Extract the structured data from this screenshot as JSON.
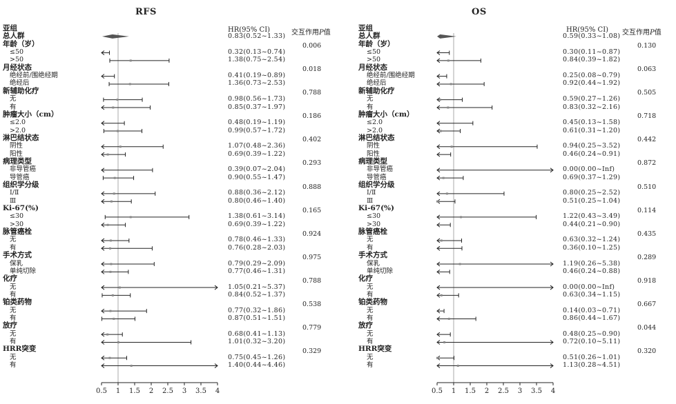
{
  "rows": [
    {
      "label": "亚组",
      "type": "grp"
    },
    {
      "label": "总人群",
      "type": "grp"
    },
    {
      "label": "年龄（岁）",
      "type": "grp"
    },
    {
      "label": "≤50",
      "type": "sub"
    },
    {
      "label": ">50",
      "type": "sub"
    },
    {
      "label": "月经状态",
      "type": "grp"
    },
    {
      "label": "绝经前/围绝经期",
      "type": "sub"
    },
    {
      "label": "绝经后",
      "type": "sub"
    },
    {
      "label": "新辅助化疗",
      "type": "grp"
    },
    {
      "label": "无",
      "type": "sub"
    },
    {
      "label": "有",
      "type": "sub"
    },
    {
      "label": "肿瘤大小（cm）",
      "type": "grp"
    },
    {
      "label": "≤2.0",
      "type": "sub"
    },
    {
      "label": ">2.0",
      "type": "sub"
    },
    {
      "label": "淋巴结状态",
      "type": "grp"
    },
    {
      "label": "阴性",
      "type": "sub"
    },
    {
      "label": "阳性",
      "type": "sub"
    },
    {
      "label": "病理类型",
      "type": "grp"
    },
    {
      "label": "非导管癌",
      "type": "sub"
    },
    {
      "label": "导管癌",
      "type": "sub"
    },
    {
      "label": "组织学分级",
      "type": "grp"
    },
    {
      "label": "Ⅰ/Ⅱ",
      "type": "sub"
    },
    {
      "label": "Ⅲ",
      "type": "sub"
    },
    {
      "label": "Ki-67(%)",
      "type": "grp"
    },
    {
      "label": "≤30",
      "type": "sub"
    },
    {
      "label": ">30",
      "type": "sub"
    },
    {
      "label": "脉管癌栓",
      "type": "grp"
    },
    {
      "label": "无",
      "type": "sub"
    },
    {
      "label": "有",
      "type": "sub"
    },
    {
      "label": "手术方式",
      "type": "grp"
    },
    {
      "label": "保乳",
      "type": "sub"
    },
    {
      "label": "单纯切除",
      "type": "sub"
    },
    {
      "label": "化疗",
      "type": "grp"
    },
    {
      "label": "无",
      "type": "sub"
    },
    {
      "label": "有",
      "type": "sub"
    },
    {
      "label": "铂类药物",
      "type": "grp"
    },
    {
      "label": "无",
      "type": "sub"
    },
    {
      "label": "有",
      "type": "sub"
    },
    {
      "label": "放疗",
      "type": "grp"
    },
    {
      "label": "无",
      "type": "sub"
    },
    {
      "label": "有",
      "type": "sub"
    },
    {
      "label": "HRR突变",
      "type": "grp"
    },
    {
      "label": "无",
      "type": "sub"
    },
    {
      "label": "有",
      "type": "sub"
    }
  ],
  "chart_data": [
    {
      "type": "forest",
      "title": "RFS",
      "hr_header": "HR(95% CI)",
      "p_header_prefix": "交互作用",
      "p_header_italic": "P",
      "p_header_suffix": "值",
      "xlim": [
        0.5,
        4
      ],
      "xticks": [
        0.5,
        1,
        1.5,
        2,
        2.5,
        3,
        3.5,
        4
      ],
      "xtick_labels": [
        "0.5",
        "1",
        "1.5",
        "2",
        "2.5",
        "3",
        "3.5",
        "4"
      ],
      "reference_line": 1,
      "overall": {
        "hr": 0.83,
        "lo": 0.52,
        "hi": 1.33,
        "text": "0.83(0.52~1.33)"
      },
      "subgroups": [
        {
          "row": 3,
          "hr": 0.32,
          "lo": 0.13,
          "hi": 0.74,
          "text": "0.32(0.13~0.74)"
        },
        {
          "row": 4,
          "hr": 1.38,
          "lo": 0.75,
          "hi": 2.54,
          "text": "1.38(0.75~2.54)"
        },
        {
          "row": 6,
          "hr": 0.41,
          "lo": 0.19,
          "hi": 0.89,
          "text": "0.41(0.19~0.89)"
        },
        {
          "row": 7,
          "hr": 1.36,
          "lo": 0.73,
          "hi": 2.53,
          "text": "1.36(0.73~2.53)"
        },
        {
          "row": 9,
          "hr": 0.98,
          "lo": 0.56,
          "hi": 1.73,
          "text": "0.98(0.56~1.73)"
        },
        {
          "row": 10,
          "hr": 0.85,
          "lo": 0.37,
          "hi": 1.97,
          "text": "0.85(0.37~1.97)"
        },
        {
          "row": 12,
          "hr": 0.48,
          "lo": 0.19,
          "hi": 1.19,
          "text": "0.48(0.19~1.19)"
        },
        {
          "row": 13,
          "hr": 0.99,
          "lo": 0.57,
          "hi": 1.72,
          "text": "0.99(0.57~1.72)"
        },
        {
          "row": 15,
          "hr": 1.07,
          "lo": 0.48,
          "hi": 2.36,
          "text": "1.07(0.48~2.36)"
        },
        {
          "row": 16,
          "hr": 0.69,
          "lo": 0.39,
          "hi": 1.22,
          "text": "0.69(0.39~1.22)"
        },
        {
          "row": 18,
          "hr": 0.39,
          "lo": 0.07,
          "hi": 2.04,
          "text": "0.39(0.07~2.04)"
        },
        {
          "row": 19,
          "hr": 0.9,
          "lo": 0.55,
          "hi": 1.47,
          "text": "0.90(0.55~1.47)"
        },
        {
          "row": 21,
          "hr": 0.88,
          "lo": 0.36,
          "hi": 2.12,
          "text": "0.88(0.36~2.12)"
        },
        {
          "row": 22,
          "hr": 0.8,
          "lo": 0.46,
          "hi": 1.4,
          "text": "0.80(0.46~1.40)"
        },
        {
          "row": 24,
          "hr": 1.38,
          "lo": 0.61,
          "hi": 3.14,
          "text": "1.38(0.61~3.14)"
        },
        {
          "row": 25,
          "hr": 0.69,
          "lo": 0.39,
          "hi": 1.22,
          "text": "0.69(0.39~1.22)"
        },
        {
          "row": 27,
          "hr": 0.78,
          "lo": 0.46,
          "hi": 1.33,
          "text": "0.78(0.46~1.33)"
        },
        {
          "row": 28,
          "hr": 0.76,
          "lo": 0.28,
          "hi": 2.03,
          "text": "0.76(0.28~2.03)"
        },
        {
          "row": 30,
          "hr": 0.79,
          "lo": 0.29,
          "hi": 2.09,
          "text": "0.79(0.29~2.09)"
        },
        {
          "row": 31,
          "hr": 0.77,
          "lo": 0.46,
          "hi": 1.31,
          "text": "0.77(0.46~1.31)"
        },
        {
          "row": 33,
          "hr": 1.05,
          "lo": 0.21,
          "hi": 5.37,
          "text": "1.05(0.21~5.37)"
        },
        {
          "row": 34,
          "hr": 0.84,
          "lo": 0.52,
          "hi": 1.37,
          "text": "0.84(0.52~1.37)"
        },
        {
          "row": 36,
          "hr": 0.77,
          "lo": 0.32,
          "hi": 1.86,
          "text": "0.77(0.32~1.86)"
        },
        {
          "row": 37,
          "hr": 0.87,
          "lo": 0.51,
          "hi": 1.51,
          "text": "0.87(0.51~1.51)"
        },
        {
          "row": 39,
          "hr": 0.68,
          "lo": 0.41,
          "hi": 1.13,
          "text": "0.68(0.41~1.13)"
        },
        {
          "row": 40,
          "hr": 1.01,
          "lo": 0.32,
          "hi": 3.2,
          "text": "1.01(0.32~3.20)"
        },
        {
          "row": 42,
          "hr": 0.75,
          "lo": 0.45,
          "hi": 1.26,
          "text": "0.75(0.45~1.26)"
        },
        {
          "row": 43,
          "hr": 1.4,
          "lo": 0.44,
          "hi": 4.46,
          "text": "1.40(0.44~4.46)"
        }
      ],
      "p_values": [
        {
          "row": 2,
          "text": "0.006"
        },
        {
          "row": 5,
          "text": "0.018"
        },
        {
          "row": 8,
          "text": "0.788"
        },
        {
          "row": 11,
          "text": "0.186"
        },
        {
          "row": 14,
          "text": "0.402"
        },
        {
          "row": 17,
          "text": "0.293"
        },
        {
          "row": 20,
          "text": "0.888"
        },
        {
          "row": 23,
          "text": "0.165"
        },
        {
          "row": 26,
          "text": "0.924"
        },
        {
          "row": 29,
          "text": "0.975"
        },
        {
          "row": 32,
          "text": "0.788"
        },
        {
          "row": 35,
          "text": "0.538"
        },
        {
          "row": 38,
          "text": "0.779"
        },
        {
          "row": 41,
          "text": "0.329"
        }
      ]
    },
    {
      "type": "forest",
      "title": "OS",
      "hr_header": "HR(95% CI)",
      "p_header_prefix": "交互作用",
      "p_header_italic": "P",
      "p_header_suffix": "值",
      "xlim": [
        0.5,
        4
      ],
      "xticks": [
        0.5,
        1,
        1.5,
        2,
        2.5,
        3,
        3.5,
        4
      ],
      "xtick_labels": [
        "0.5",
        "1",
        "1.5",
        "2",
        "2.5",
        "3",
        "3.5",
        "4"
      ],
      "reference_line": 1,
      "overall": {
        "hr": 0.59,
        "lo": 0.33,
        "hi": 1.08,
        "text": "0.59(0.33~1.08)"
      },
      "subgroups": [
        {
          "row": 3,
          "hr": 0.3,
          "lo": 0.11,
          "hi": 0.87,
          "text": "0.30(0.11~0.87)"
        },
        {
          "row": 4,
          "hr": 0.84,
          "lo": 0.39,
          "hi": 1.82,
          "text": "0.84(0.39~1.82)"
        },
        {
          "row": 6,
          "hr": 0.25,
          "lo": 0.08,
          "hi": 0.79,
          "text": "0.25(0.08~0.79)"
        },
        {
          "row": 7,
          "hr": 0.92,
          "lo": 0.44,
          "hi": 1.92,
          "text": "0.92(0.44~1.92)"
        },
        {
          "row": 9,
          "hr": 0.59,
          "lo": 0.27,
          "hi": 1.26,
          "text": "0.59(0.27~1.26)"
        },
        {
          "row": 10,
          "hr": 0.83,
          "lo": 0.32,
          "hi": 2.16,
          "text": "0.83(0.32~2.16)"
        },
        {
          "row": 12,
          "hr": 0.45,
          "lo": 0.13,
          "hi": 1.58,
          "text": "0.45(0.13~1.58)"
        },
        {
          "row": 13,
          "hr": 0.61,
          "lo": 0.31,
          "hi": 1.2,
          "text": "0.61(0.31~1.20)"
        },
        {
          "row": 15,
          "hr": 0.94,
          "lo": 0.25,
          "hi": 3.52,
          "text": "0.94(0.25~3.52)"
        },
        {
          "row": 16,
          "hr": 0.46,
          "lo": 0.24,
          "hi": 0.91,
          "text": "0.46(0.24~0.91)"
        },
        {
          "row": 18,
          "hr": 0.0,
          "lo": 0.0,
          "hi": null,
          "text": "0.00(0.00~Inf)"
        },
        {
          "row": 19,
          "hr": 0.69,
          "lo": 0.37,
          "hi": 1.29,
          "text": "0.69(0.37~1.29)"
        },
        {
          "row": 21,
          "hr": 0.8,
          "lo": 0.25,
          "hi": 2.52,
          "text": "0.80(0.25~2.52)"
        },
        {
          "row": 22,
          "hr": 0.51,
          "lo": 0.25,
          "hi": 1.04,
          "text": "0.51(0.25~1.04)"
        },
        {
          "row": 24,
          "hr": 1.22,
          "lo": 0.43,
          "hi": 3.49,
          "text": "1.22(0.43~3.49)"
        },
        {
          "row": 25,
          "hr": 0.44,
          "lo": 0.21,
          "hi": 0.9,
          "text": "0.44(0.21~0.90)"
        },
        {
          "row": 27,
          "hr": 0.63,
          "lo": 0.32,
          "hi": 1.24,
          "text": "0.63(0.32~1.24)"
        },
        {
          "row": 28,
          "hr": 0.36,
          "lo": 0.1,
          "hi": 1.25,
          "text": "0.36(0.10~1.25)"
        },
        {
          "row": 30,
          "hr": 1.19,
          "lo": 0.26,
          "hi": 5.38,
          "text": "1.19(0.26~5.38)"
        },
        {
          "row": 31,
          "hr": 0.46,
          "lo": 0.24,
          "hi": 0.88,
          "text": "0.46(0.24~0.88)"
        },
        {
          "row": 33,
          "hr": 0.0,
          "lo": 0.0,
          "hi": null,
          "text": "0.00(0.00~Inf)"
        },
        {
          "row": 34,
          "hr": 0.63,
          "lo": 0.34,
          "hi": 1.15,
          "text": "0.63(0.34~1.15)"
        },
        {
          "row": 36,
          "hr": 0.14,
          "lo": 0.03,
          "hi": 0.71,
          "text": "0.14(0.03~0.71)"
        },
        {
          "row": 37,
          "hr": 0.86,
          "lo": 0.44,
          "hi": 1.67,
          "text": "0.86(0.44~1.67)"
        },
        {
          "row": 39,
          "hr": 0.48,
          "lo": 0.25,
          "hi": 0.9,
          "text": "0.48(0.25~0.90)"
        },
        {
          "row": 40,
          "hr": 0.72,
          "lo": 0.1,
          "hi": 5.11,
          "text": "0.72(0.10~5.11)"
        },
        {
          "row": 42,
          "hr": 0.51,
          "lo": 0.26,
          "hi": 1.01,
          "text": "0.51(0.26~1.01)"
        },
        {
          "row": 43,
          "hr": 1.13,
          "lo": 0.28,
          "hi": 4.51,
          "text": "1.13(0.28~4.51)"
        }
      ],
      "p_values": [
        {
          "row": 2,
          "text": "0.130"
        },
        {
          "row": 5,
          "text": "0.063"
        },
        {
          "row": 8,
          "text": "0.505"
        },
        {
          "row": 11,
          "text": "0.718"
        },
        {
          "row": 14,
          "text": "0.442"
        },
        {
          "row": 17,
          "text": "0.872"
        },
        {
          "row": 20,
          "text": "0.510"
        },
        {
          "row": 23,
          "text": "0.114"
        },
        {
          "row": 26,
          "text": "0.435"
        },
        {
          "row": 29,
          "text": "0.289"
        },
        {
          "row": 32,
          "text": "0.918"
        },
        {
          "row": 35,
          "text": "0.667"
        },
        {
          "row": 38,
          "text": "0.044"
        },
        {
          "row": 41,
          "text": "0.320"
        }
      ]
    }
  ],
  "colors": {
    "line": "#222222",
    "point": "#888888",
    "diamond": "#555555",
    "reference": "#aaaaaa"
  }
}
